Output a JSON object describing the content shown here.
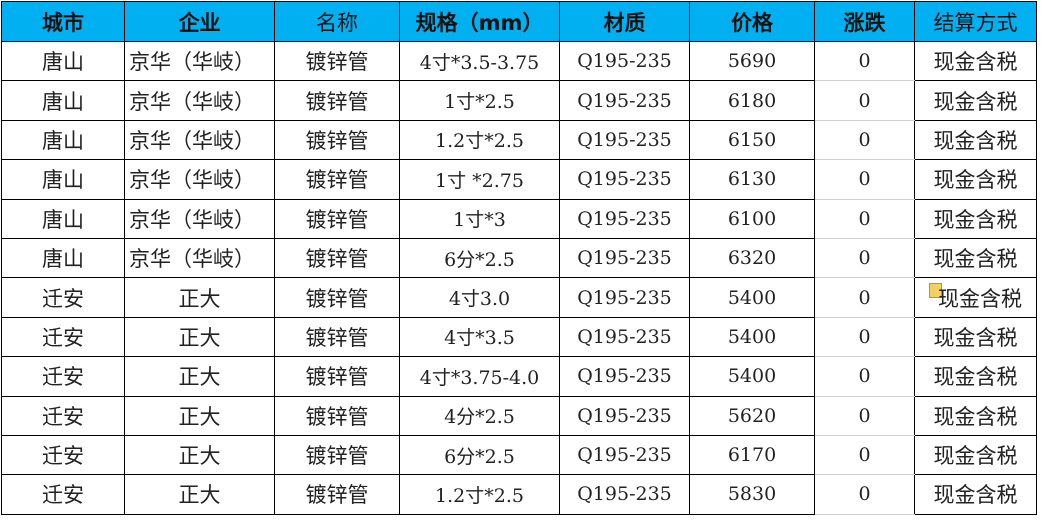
{
  "headers": [
    "城市",
    "企业",
    "名称",
    "规格（mm）",
    "材质",
    "价格",
    "涨跌",
    "结算方式"
  ],
  "rows": [
    [
      "唐山",
      "京华（华岐）",
      "镀锌管",
      "4寸*3.5-3.75",
      "Q195-235",
      "5690",
      "0",
      "现金含税"
    ],
    [
      "唐山",
      "京华（华岐）",
      "镀锌管",
      "1寸*2.5",
      "Q195-235",
      "6180",
      "0",
      "现金含税"
    ],
    [
      "唐山",
      "京华（华岐）",
      "镀锌管",
      "1.2寸*2.5",
      "Q195-235",
      "6150",
      "0",
      "现金含税"
    ],
    [
      "唐山",
      "京华（华岐）",
      "镀锌管",
      "1寸 *2.75",
      "Q195-235",
      "6130",
      "0",
      "现金含税"
    ],
    [
      "唐山",
      "京华（华岐）",
      "镀锌管",
      "1寸*3",
      "Q195-235",
      "6100",
      "0",
      "现金含税"
    ],
    [
      "唐山",
      "京华（华岐）",
      "镀锌管",
      "6分*2.5",
      "Q195-235",
      "6320",
      "0",
      "现金含税"
    ],
    [
      "迁安",
      "正大",
      "镀锌管",
      "4寸3.0",
      "Q195-235",
      "5400",
      "0",
      "现金含税"
    ],
    [
      "迁安",
      "正大",
      "镀锌管",
      "4寸*3.5",
      "Q195-235",
      "5400",
      "0",
      "现金含税"
    ],
    [
      "迁安",
      "正大",
      "镀锌管",
      "4寸*3.75-4.0",
      "Q195-235",
      "5400",
      "0",
      "现金含税"
    ],
    [
      "迁安",
      "正大",
      "镀锌管",
      "4分*2.5",
      "Q195-235",
      "5620",
      "0",
      "现金含税"
    ],
    [
      "迁安",
      "正大",
      "镀锌管",
      "6分*2.5",
      "Q195-235",
      "6170",
      "0",
      "现金含税"
    ],
    [
      "迁安",
      "正大",
      "镀锌管",
      "1.2寸*2.5",
      "Q195-235",
      "5830",
      "0",
      "现金含税"
    ]
  ],
  "colors": {
    "header_bg": "#00B0F0"
  },
  "icons": {
    "paste_options": "clipboard-paste-icon"
  }
}
